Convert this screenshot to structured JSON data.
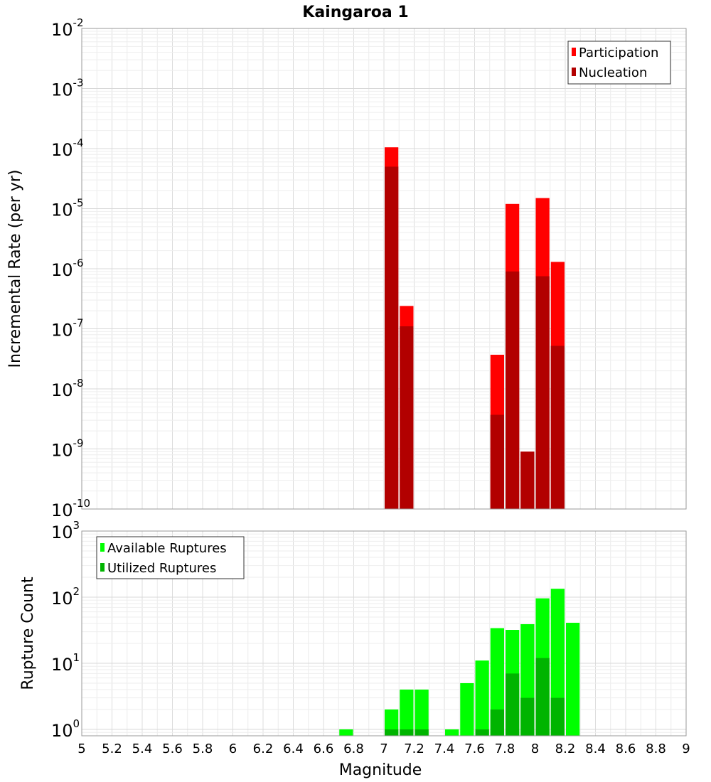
{
  "chart_data": [
    {
      "type": "bar",
      "title": "Kaingaroa 1",
      "xlabel": "",
      "ylabel": "Incremental Rate (per yr)",
      "yscale": "log",
      "ylim": [
        1e-10,
        0.01
      ],
      "ytick_exponents": [
        -2,
        -3,
        -4,
        -5,
        -6,
        -7,
        -8,
        -9,
        -10
      ],
      "xlim": [
        5,
        9
      ],
      "bin_width": 0.1,
      "legend_position": "top-right",
      "grid": true,
      "series": [
        {
          "name": "Participation",
          "color": "#ff0000",
          "points": [
            {
              "x": 7.05,
              "y": 0.000105
            },
            {
              "x": 7.15,
              "y": 2.4e-07
            },
            {
              "x": 7.75,
              "y": 3.7e-08
            },
            {
              "x": 7.85,
              "y": 1.2e-05
            },
            {
              "x": 7.95,
              "y": 9e-10
            },
            {
              "x": 8.05,
              "y": 1.5e-05
            },
            {
              "x": 8.15,
              "y": 1.3e-06
            }
          ]
        },
        {
          "name": "Nucleation",
          "color": "#b20000",
          "points": [
            {
              "x": 7.05,
              "y": 5e-05
            },
            {
              "x": 7.15,
              "y": 1.1e-07
            },
            {
              "x": 7.75,
              "y": 3.7e-09
            },
            {
              "x": 7.85,
              "y": 9e-07
            },
            {
              "x": 7.95,
              "y": 9e-10
            },
            {
              "x": 8.05,
              "y": 7.5e-07
            },
            {
              "x": 8.15,
              "y": 5.2e-08
            }
          ]
        }
      ]
    },
    {
      "type": "bar",
      "title": "",
      "xlabel": "Magnitude",
      "ylabel": "Rupture Count",
      "yscale": "log",
      "ylim": [
        0.8,
        1000
      ],
      "ytick_exponents": [
        3,
        2,
        1,
        0
      ],
      "xlim": [
        5,
        9
      ],
      "xticks": [
        "5",
        "5.2",
        "5.4",
        "5.6",
        "5.8",
        "6",
        "6.2",
        "6.4",
        "6.6",
        "6.8",
        "7",
        "7.2",
        "7.4",
        "7.6",
        "7.8",
        "8",
        "8.2",
        "8.4",
        "8.6",
        "8.8",
        "9"
      ],
      "bin_width": 0.1,
      "legend_position": "top-left",
      "grid": true,
      "series": [
        {
          "name": "Available Ruptures",
          "color": "#00ff00",
          "points": [
            {
              "x": 6.75,
              "y": 1
            },
            {
              "x": 7.05,
              "y": 2
            },
            {
              "x": 7.15,
              "y": 4
            },
            {
              "x": 7.25,
              "y": 4
            },
            {
              "x": 7.45,
              "y": 1
            },
            {
              "x": 7.55,
              "y": 5
            },
            {
              "x": 7.65,
              "y": 11
            },
            {
              "x": 7.75,
              "y": 34
            },
            {
              "x": 7.85,
              "y": 32
            },
            {
              "x": 7.95,
              "y": 39
            },
            {
              "x": 8.05,
              "y": 96
            },
            {
              "x": 8.15,
              "y": 134
            },
            {
              "x": 8.25,
              "y": 41
            }
          ]
        },
        {
          "name": "Utilized Ruptures",
          "color": "#00b400",
          "points": [
            {
              "x": 7.05,
              "y": 1
            },
            {
              "x": 7.15,
              "y": 1
            },
            {
              "x": 7.25,
              "y": 1
            },
            {
              "x": 7.65,
              "y": 1
            },
            {
              "x": 7.75,
              "y": 2
            },
            {
              "x": 7.85,
              "y": 7
            },
            {
              "x": 7.95,
              "y": 3
            },
            {
              "x": 8.05,
              "y": 12
            },
            {
              "x": 8.15,
              "y": 3
            }
          ]
        }
      ]
    }
  ]
}
